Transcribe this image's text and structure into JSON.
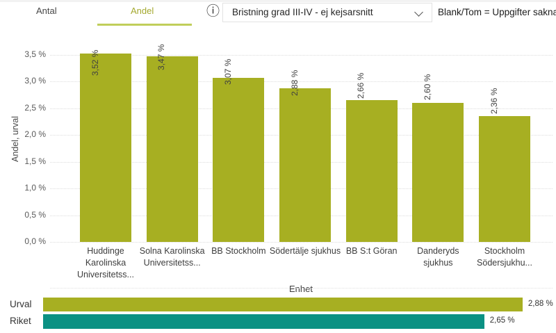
{
  "header": {
    "tabs": [
      {
        "label": "Antal",
        "active": false
      },
      {
        "label": "Andel",
        "active": true
      }
    ],
    "dropdown": {
      "value": "Bristning grad III-IV - ej kejsarsnitt"
    },
    "note": "Blank/Tom = Uppgifter saknas",
    "icons": {
      "info": "ⓘ",
      "chevron_down": "chevron-down"
    }
  },
  "chart_data": {
    "type": "bar",
    "title": "Bristning grad III-IV - ej kejsarsnitt",
    "categories": [
      "Huddinge Karolinska Universitetss...",
      "Solna Karolinska Universitetss...",
      "BB Stockholm",
      "Södertälje sjukhus",
      "BB S:t Göran",
      "Danderyds sjukhus",
      "Stockholm Södersjukhu..."
    ],
    "values": [
      3.52,
      3.47,
      3.07,
      2.88,
      2.66,
      2.6,
      2.36
    ],
    "value_labels": [
      "3,52 %",
      "3,47 %",
      "3,07 %",
      "2,88 %",
      "2,66 %",
      "2,60 %",
      "2,36 %"
    ],
    "xlabel": "Enhet",
    "ylabel": "Andel, urval",
    "ylim": [
      0,
      3.5
    ],
    "ytick_step": 0.5,
    "ytick_labels": [
      "0,0 %",
      "0,5 %",
      "1,0 %",
      "1,5 %",
      "2,0 %",
      "2,5 %",
      "3,0 %",
      "3,5 %"
    ],
    "bar_color": "#a7af22",
    "grid": true,
    "legend_position": "none"
  },
  "comparison_chart": {
    "type": "bar-horizontal",
    "axis_max": 3.06,
    "rows": [
      {
        "label": "Urval",
        "value": 2.88,
        "value_label": "2,88 %",
        "color": "#a7af22"
      },
      {
        "label": "Riket",
        "value": 2.65,
        "value_label": "2,65 %",
        "color": "#0b9183"
      }
    ]
  },
  "colors": {
    "bar": "#a7af22",
    "riket": "#0b9183",
    "tab_active": "#a4a92f",
    "tab_underline": "#c0ce5a"
  }
}
